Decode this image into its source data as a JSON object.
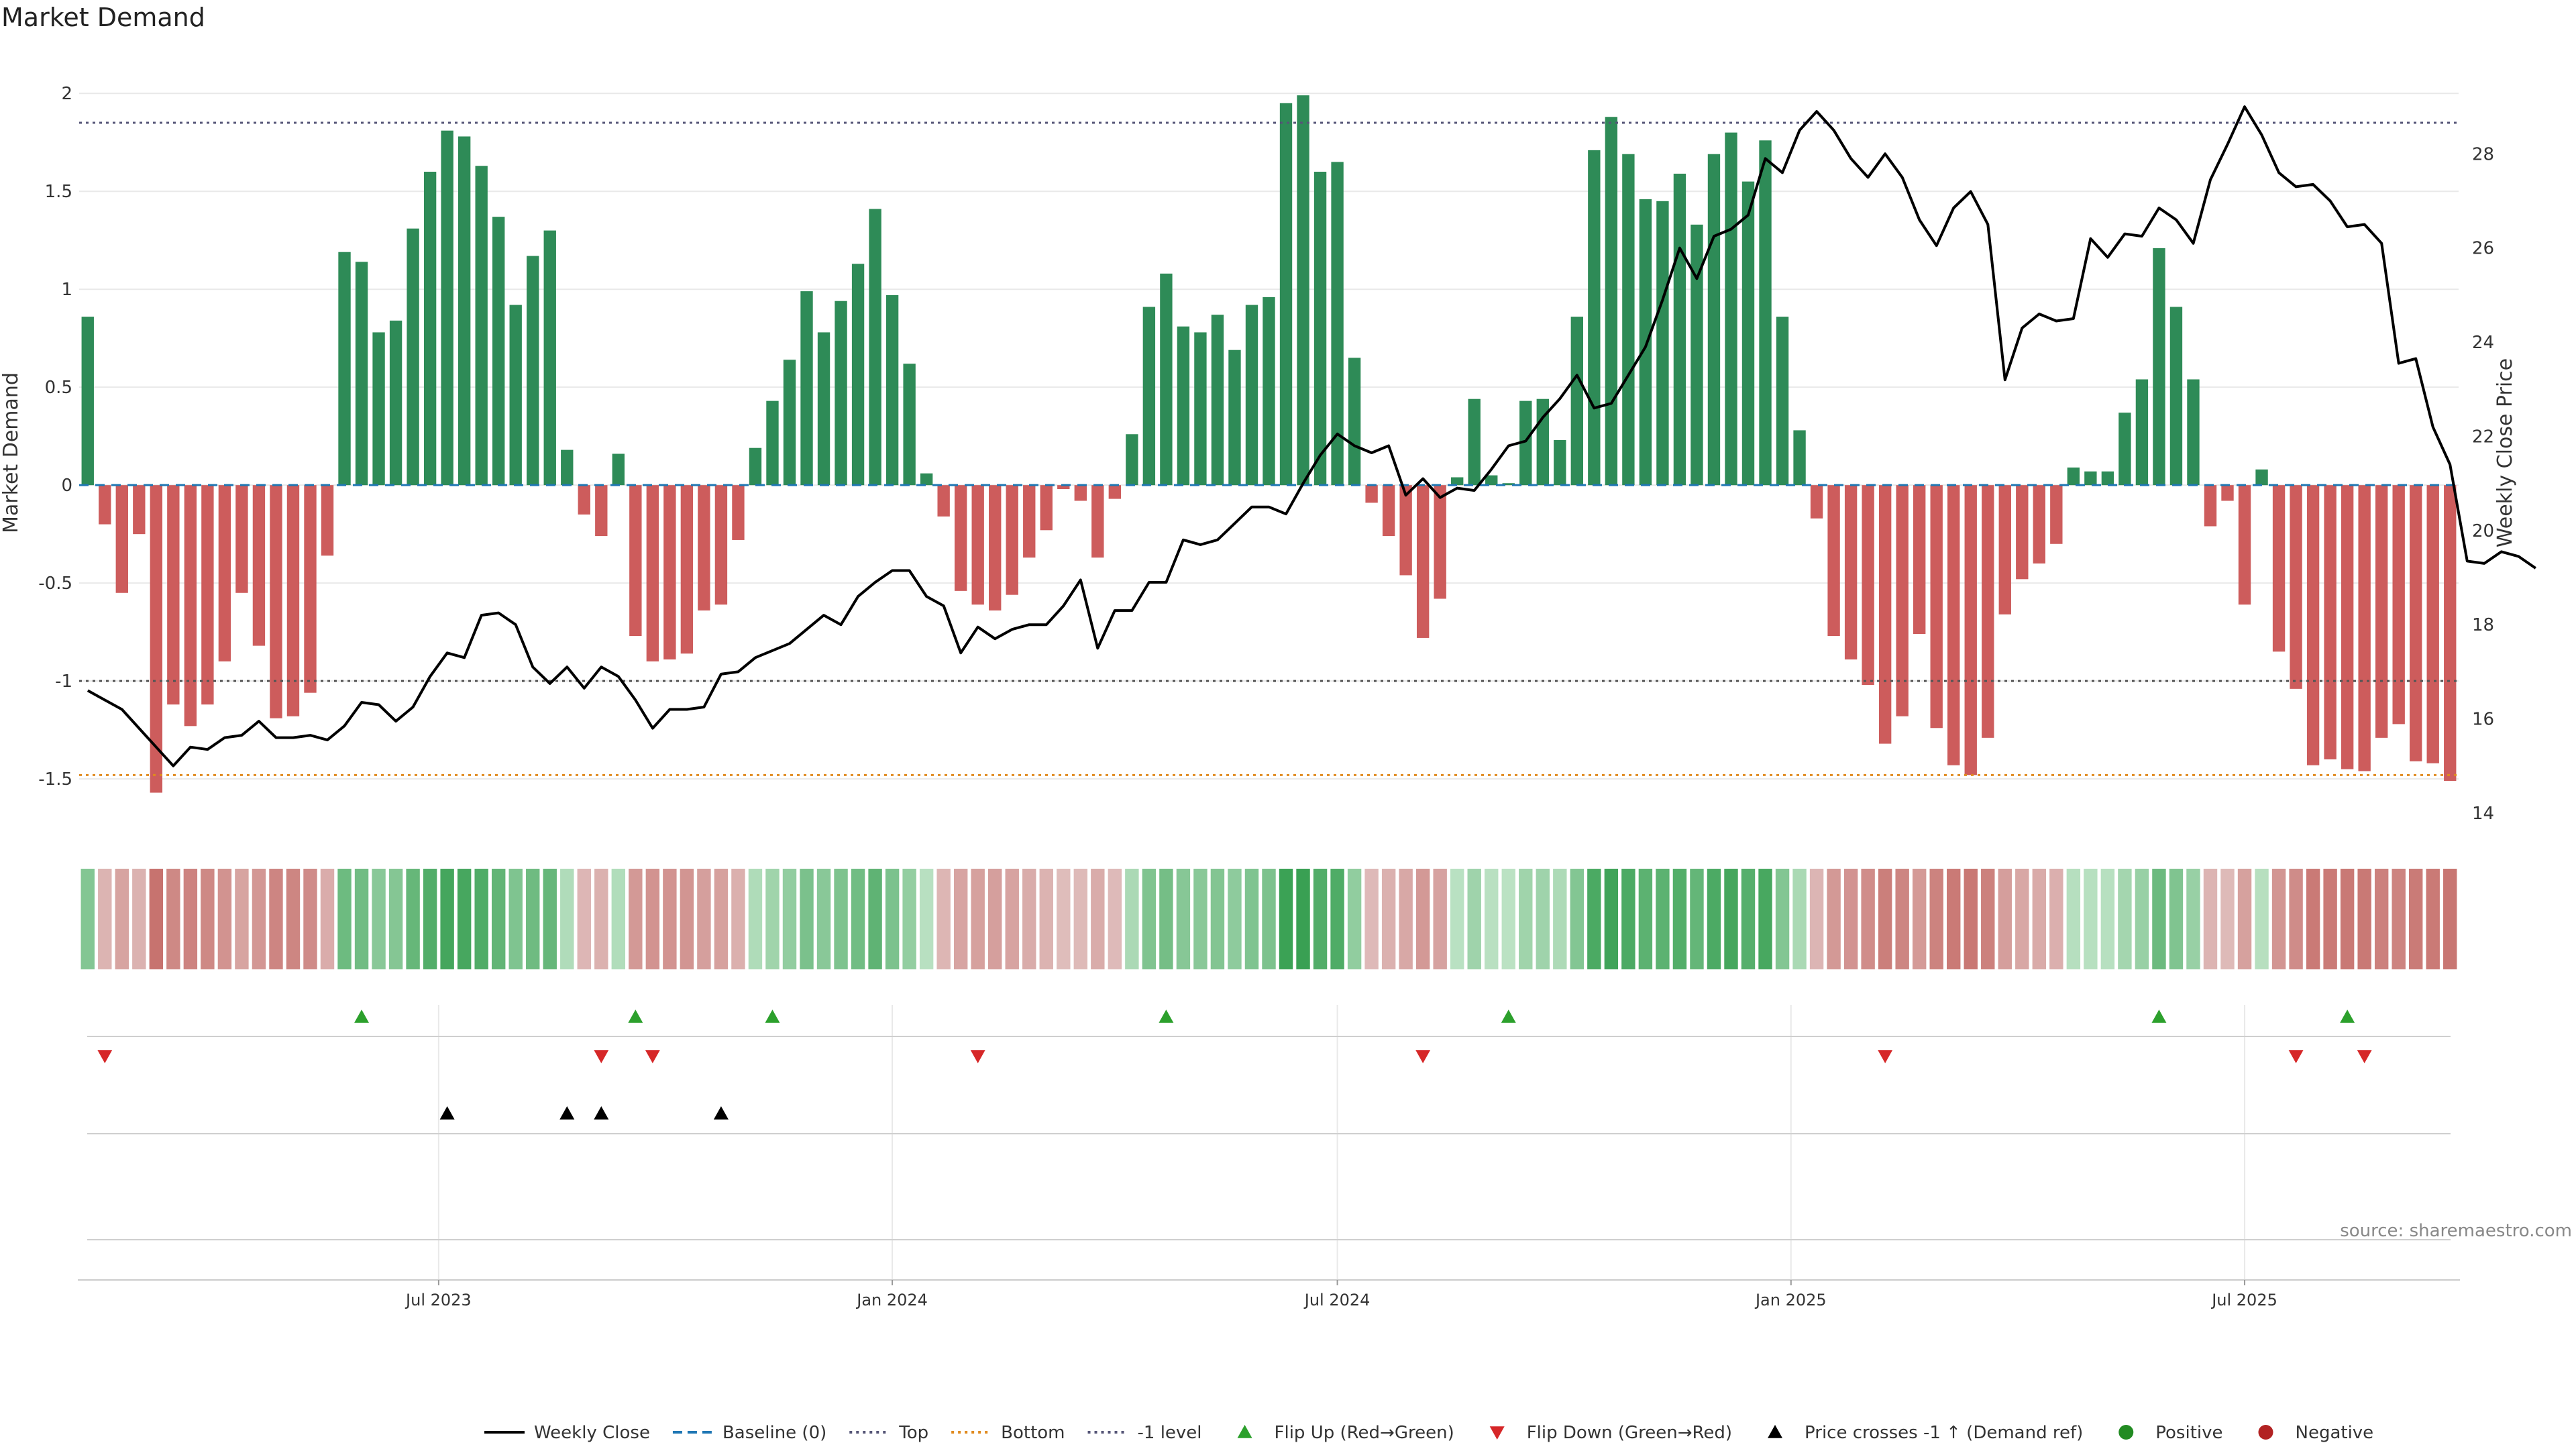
{
  "title": "Market Demand",
  "source": "source: sharemaestro.com",
  "colors": {
    "positive_bar": "#2e8b57",
    "negative_bar": "#cd5c5c",
    "line": "#000000",
    "baseline": "#1f77b4",
    "top_line": "#555577",
    "bottom_line": "#e08a1e",
    "level_line": "#555555",
    "flip_up": "#2ca02c",
    "flip_down": "#d62728",
    "cross": "#000000",
    "grid": "#e9e9e9"
  },
  "chart_data": {
    "type": "bar+line",
    "title": "Market Demand",
    "ylabel": "Market Demand",
    "y2label": "Weekly Close Price",
    "ylim": [
      -1.77,
      2.1
    ],
    "y2lim": [
      13.6,
      29.7
    ],
    "yticks": [
      "2",
      "1.5",
      "1",
      "0.5",
      "0",
      "-0.5",
      "-1",
      "-1.5"
    ],
    "yticks_values": [
      2,
      1.5,
      1,
      0.5,
      0,
      -0.5,
      -1,
      -1.5
    ],
    "y2ticks": [
      "28",
      "26",
      "24",
      "22",
      "20",
      "18",
      "16",
      "14"
    ],
    "y2ticks_values": [
      28,
      26,
      24,
      22,
      20,
      18,
      16,
      14
    ],
    "xlim_weeks": [
      0,
      145
    ],
    "xticks": [
      {
        "label": "Jul 2023",
        "week": 20.5
      },
      {
        "label": "Jan 2024",
        "week": 47
      },
      {
        "label": "Jul 2024",
        "week": 73
      },
      {
        "label": "Jan 2025",
        "week": 99.5
      },
      {
        "label": "Jul 2025",
        "week": 126
      }
    ],
    "reference_levels": {
      "top": 1.85,
      "bottom": -1.48,
      "minus_one": -1,
      "baseline": 0
    },
    "demand": [
      0.86,
      -0.2,
      -0.55,
      -0.25,
      -1.57,
      -1.12,
      -1.23,
      -1.12,
      -0.9,
      -0.55,
      -0.82,
      -1.19,
      -1.18,
      -1.06,
      -0.36,
      1.19,
      1.14,
      0.78,
      0.84,
      1.31,
      1.6,
      1.81,
      1.78,
      1.63,
      1.37,
      0.92,
      1.17,
      1.3,
      0.18,
      -0.15,
      -0.26,
      0.16,
      -0.77,
      -0.9,
      -0.89,
      -0.86,
      -0.64,
      -0.61,
      -0.28,
      0.19,
      0.43,
      0.64,
      0.99,
      0.78,
      0.94,
      1.13,
      1.41,
      0.97,
      0.62,
      0.06,
      -0.16,
      -0.54,
      -0.61,
      -0.64,
      -0.56,
      -0.37,
      -0.23,
      -0.02,
      -0.08,
      -0.37,
      -0.07,
      0.26,
      0.91,
      1.08,
      0.81,
      0.78,
      0.87,
      0.69,
      0.92,
      0.96,
      1.95,
      1.99,
      1.6,
      1.65,
      0.65,
      -0.09,
      -0.26,
      -0.46,
      -0.78,
      -0.58,
      0.04,
      0.44,
      0.05,
      0.01,
      0.43,
      0.44,
      0.23,
      0.86,
      1.71,
      1.88,
      1.69,
      1.46,
      1.45,
      1.59,
      1.33,
      1.69,
      1.8,
      1.55,
      1.76,
      0.86,
      0.28,
      -0.17,
      -0.77,
      -0.89,
      -1.02,
      -1.32,
      -1.18,
      -0.76,
      -1.24,
      -1.43,
      -1.48,
      -1.29,
      -0.66,
      -0.48,
      -0.4,
      -0.3,
      0.09,
      0.07,
      0.07,
      0.37,
      0.54,
      1.21,
      0.91,
      0.54,
      -0.21,
      -0.08,
      -0.61,
      0.08,
      -0.85,
      -1.04,
      -1.43,
      -1.4,
      -1.45,
      -1.46,
      -1.29,
      -1.22,
      -1.41,
      -1.42,
      -1.51
    ],
    "weekly_close": [
      16.6,
      16.4,
      16.2,
      15.8,
      15.4,
      15.0,
      15.4,
      15.35,
      15.6,
      15.65,
      15.95,
      15.6,
      15.6,
      15.65,
      15.55,
      15.85,
      16.35,
      16.3,
      15.95,
      16.25,
      16.9,
      17.4,
      17.3,
      18.2,
      18.25,
      18.0,
      17.1,
      16.75,
      17.1,
      16.65,
      17.1,
      16.9,
      16.4,
      15.8,
      16.2,
      16.2,
      16.25,
      16.95,
      17.0,
      17.3,
      17.45,
      17.6,
      17.9,
      18.2,
      18.0,
      18.6,
      18.9,
      19.15,
      19.15,
      18.6,
      18.4,
      17.4,
      17.95,
      17.7,
      17.9,
      18.0,
      18.0,
      18.4,
      18.95,
      17.5,
      18.3,
      18.3,
      18.9,
      18.9,
      19.8,
      19.7,
      19.8,
      20.15,
      20.5,
      20.5,
      20.35,
      21.0,
      21.6,
      22.05,
      21.8,
      21.65,
      21.8,
      20.75,
      21.1,
      20.7,
      20.9,
      20.85,
      21.3,
      21.8,
      21.9,
      22.4,
      22.8,
      23.3,
      22.6,
      22.7,
      23.3,
      23.9,
      24.9,
      26.0,
      25.35,
      26.25,
      26.4,
      26.7,
      27.9,
      27.6,
      28.5,
      28.9,
      28.5,
      27.9,
      27.5,
      28.0,
      27.5,
      26.6,
      26.05,
      26.85,
      27.2,
      26.5,
      23.2,
      24.3,
      24.6,
      24.45,
      24.5,
      26.2,
      25.8,
      26.3,
      26.25,
      26.85,
      26.6,
      26.1,
      27.45,
      28.2,
      29.0,
      28.4,
      27.6,
      27.3,
      27.35,
      27.0,
      26.45,
      26.5,
      26.1,
      23.55,
      23.65,
      22.2,
      21.4,
      19.35,
      19.3,
      19.55,
      19.45,
      19.2
    ],
    "flip_up_weeks": [
      16,
      32,
      40,
      63,
      83,
      121,
      132
    ],
    "flip_down_weeks": [
      1,
      30,
      33,
      52,
      78,
      105,
      129,
      133
    ],
    "price_cross_weeks": [
      21,
      28,
      30,
      37
    ],
    "legend": [
      {
        "label": "Weekly Close",
        "marker": "line"
      },
      {
        "label": "Baseline (0)",
        "marker": "dash"
      },
      {
        "label": "Top",
        "marker": "dot-gray"
      },
      {
        "label": "Bottom",
        "marker": "dot-orange"
      },
      {
        "label": "-1 level",
        "marker": "dot-gray"
      },
      {
        "label": "Flip Up (Red→Green)",
        "marker": "tri-up-green"
      },
      {
        "label": "Flip Down (Green→Red)",
        "marker": "tri-down-red"
      },
      {
        "label": "Price crosses -1 ↑ (Demand ref)",
        "marker": "tri-up-black"
      },
      {
        "label": "Positive",
        "marker": "dot-green"
      },
      {
        "label": "Negative",
        "marker": "dot-red"
      }
    ]
  }
}
